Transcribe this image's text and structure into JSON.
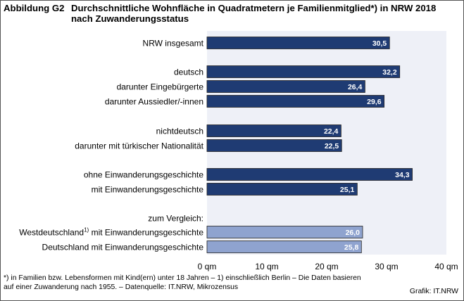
{
  "figure_label": "Abbildung G2",
  "title": "Durchschnittliche Wohnfläche in Quadratmetern je Familienmitglied*) in NRW 2018",
  "subtitle": "nach Zuwanderungsstatus",
  "footnote_line1": "*) in Familien  bzw. Lebensformen mit Kind(ern) unter 18 Jahren – 1) einschließlich Berlin – Die Daten basieren",
  "footnote_line2": "auf einer Zuwanderung nach 1955.  – Datenquelle:  IT.NRW,  Mikrozensus",
  "source": "Grafik: IT.NRW",
  "colors": {
    "main": "#1f3b73",
    "comparison": "#8fa3cf",
    "plot_bg": "#eef0f7"
  },
  "chart_data": {
    "type": "bar",
    "orientation": "horizontal",
    "xlim": [
      0,
      40
    ],
    "xticks": [
      "0 qm",
      "10 qm",
      "20 qm",
      "30 qm",
      "40 qm"
    ],
    "group_header": "zum Vergleich:",
    "bars": [
      {
        "label": "NRW insgesamt",
        "value": 30.5,
        "value_label": "30,5",
        "group": 0,
        "style": "main"
      },
      {
        "label": "deutsch",
        "value": 32.2,
        "value_label": "32,2",
        "group": 1,
        "style": "main"
      },
      {
        "label": "darunter Eingebürgerte",
        "value": 26.4,
        "value_label": "26,4",
        "group": 1,
        "style": "main"
      },
      {
        "label": "darunter Aussiedler/-innen",
        "value": 29.6,
        "value_label": "29,6",
        "group": 1,
        "style": "main"
      },
      {
        "label": "nichtdeutsch",
        "value": 22.4,
        "value_label": "22,4",
        "group": 2,
        "style": "main"
      },
      {
        "label": "darunter mit türkischer Nationalität",
        "value": 22.5,
        "value_label": "22,5",
        "group": 2,
        "style": "main"
      },
      {
        "label": "ohne Einwanderungsgeschichte",
        "value": 34.3,
        "value_label": "34,3",
        "group": 3,
        "style": "main"
      },
      {
        "label": "mit Einwanderungsgeschichte",
        "value": 25.1,
        "value_label": "25,1",
        "group": 3,
        "style": "main"
      },
      {
        "label": "Westdeutschland",
        "label_sup": "1)",
        "label_rest": " mit Einwanderungsgeschichte",
        "value": 26.0,
        "value_label": "26,0",
        "group": 4,
        "style": "comparison"
      },
      {
        "label": "Deutschland mit Einwanderungsgeschichte",
        "value": 25.8,
        "value_label": "25,8",
        "group": 4,
        "style": "comparison"
      }
    ]
  }
}
